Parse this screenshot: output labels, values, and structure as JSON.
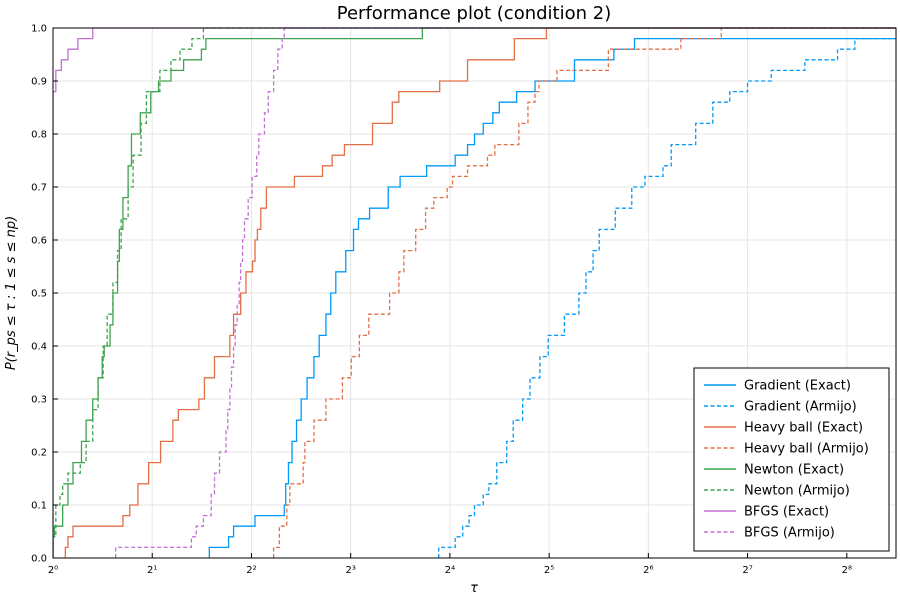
{
  "chart_data": {
    "type": "line",
    "title": "Performance plot (condition 2)",
    "xlabel": "τ",
    "ylabel": "P(r_ps ≤ τ : 1 ≤ s ≤ np)",
    "xscale": "log2",
    "xlim": [
      1,
      361
    ],
    "ylim": [
      0,
      1
    ],
    "xticks": [
      {
        "value": 1,
        "label": "2⁰"
      },
      {
        "value": 2,
        "label": "2¹"
      },
      {
        "value": 4,
        "label": "2²"
      },
      {
        "value": 8,
        "label": "2³"
      },
      {
        "value": 16,
        "label": "2⁴"
      },
      {
        "value": 32,
        "label": "2⁵"
      },
      {
        "value": 64,
        "label": "2⁶"
      },
      {
        "value": 128,
        "label": "2⁷"
      },
      {
        "value": 256,
        "label": "2⁸"
      }
    ],
    "yticks": [
      "0.0",
      "0.1",
      "0.2",
      "0.3",
      "0.4",
      "0.5",
      "0.6",
      "0.7",
      "0.8",
      "0.9",
      "1.0"
    ],
    "grid": true,
    "legend_position": "bottom-right",
    "series": [
      {
        "name": "Gradient (Exact)",
        "color": "#009af9",
        "dash": "solid",
        "points": [
          [
            2.98,
            0
          ],
          [
            2.98,
            0.02
          ],
          [
            3.41,
            0.02
          ],
          [
            3.41,
            0.04
          ],
          [
            3.53,
            0.04
          ],
          [
            3.53,
            0.06
          ],
          [
            4.1,
            0.06
          ],
          [
            4.1,
            0.08
          ],
          [
            5.03,
            0.08
          ],
          [
            5.03,
            0.1
          ],
          [
            5.08,
            0.14
          ],
          [
            5.18,
            0.18
          ],
          [
            5.31,
            0.22
          ],
          [
            5.48,
            0.26
          ],
          [
            5.66,
            0.3
          ],
          [
            5.9,
            0.34
          ],
          [
            6.19,
            0.38
          ],
          [
            6.42,
            0.42
          ],
          [
            6.73,
            0.46
          ],
          [
            6.96,
            0.5
          ],
          [
            7.21,
            0.54
          ],
          [
            7.73,
            0.58
          ],
          [
            8.16,
            0.62
          ],
          [
            8.45,
            0.64
          ],
          [
            9.13,
            0.66
          ],
          [
            10.4,
            0.7
          ],
          [
            11.3,
            0.72
          ],
          [
            13.6,
            0.72
          ],
          [
            13.6,
            0.74
          ],
          [
            16.6,
            0.74
          ],
          [
            16.6,
            0.76
          ],
          [
            18.1,
            0.78
          ],
          [
            19.0,
            0.8
          ],
          [
            20.2,
            0.82
          ],
          [
            21.6,
            0.84
          ],
          [
            22.6,
            0.86
          ],
          [
            25.5,
            0.88
          ],
          [
            29.0,
            0.88
          ],
          [
            29.0,
            0.9
          ],
          [
            38.2,
            0.9
          ],
          [
            38.2,
            0.94
          ],
          [
            42.7,
            0.94
          ],
          [
            50.3,
            0.94
          ],
          [
            50.3,
            0.96
          ],
          [
            58.1,
            0.96
          ],
          [
            58.1,
            0.98
          ],
          [
            361,
            0.98
          ]
        ]
      },
      {
        "name": "Gradient (Armijo)",
        "color": "#009af9",
        "dash": "dashed",
        "points": [
          [
            14.8,
            0
          ],
          [
            14.8,
            0.02
          ],
          [
            16.6,
            0.02
          ],
          [
            16.6,
            0.04
          ],
          [
            17.5,
            0.06
          ],
          [
            18.3,
            0.08
          ],
          [
            19.0,
            0.1
          ],
          [
            20.2,
            0.12
          ],
          [
            21.0,
            0.14
          ],
          [
            22.2,
            0.18
          ],
          [
            23.8,
            0.22
          ],
          [
            24.9,
            0.26
          ],
          [
            26.6,
            0.3
          ],
          [
            28.0,
            0.34
          ],
          [
            30.0,
            0.38
          ],
          [
            31.8,
            0.42
          ],
          [
            35.6,
            0.46
          ],
          [
            39.4,
            0.5
          ],
          [
            41.4,
            0.54
          ],
          [
            43.5,
            0.58
          ],
          [
            45.4,
            0.62
          ],
          [
            50.8,
            0.66
          ],
          [
            57.0,
            0.7
          ],
          [
            62.5,
            0.72
          ],
          [
            70.9,
            0.74
          ],
          [
            75.1,
            0.78
          ],
          [
            89.1,
            0.78
          ],
          [
            89.1,
            0.82
          ],
          [
            100.4,
            0.86
          ],
          [
            113.0,
            0.88
          ],
          [
            128.0,
            0.9
          ],
          [
            151.0,
            0.92
          ],
          [
            191.0,
            0.94
          ],
          [
            240.0,
            0.96
          ],
          [
            270.8,
            0.98
          ],
          [
            361,
            0.98
          ]
        ]
      },
      {
        "name": "Heavy ball (Exact)",
        "color": "#e26f46",
        "dash": "solid",
        "points": [
          [
            1.09,
            0
          ],
          [
            1.09,
            0.02
          ],
          [
            1.11,
            0.04
          ],
          [
            1.15,
            0.06
          ],
          [
            1.63,
            0.06
          ],
          [
            1.63,
            0.08
          ],
          [
            1.71,
            0.1
          ],
          [
            1.81,
            0.14
          ],
          [
            1.95,
            0.18
          ],
          [
            2.12,
            0.22
          ],
          [
            2.31,
            0.26
          ],
          [
            2.4,
            0.28
          ],
          [
            2.77,
            0.3
          ],
          [
            2.88,
            0.34
          ],
          [
            3.09,
            0.38
          ],
          [
            3.44,
            0.42
          ],
          [
            3.53,
            0.46
          ],
          [
            3.71,
            0.5
          ],
          [
            3.85,
            0.54
          ],
          [
            4.03,
            0.56
          ],
          [
            4.1,
            0.6
          ],
          [
            4.17,
            0.62
          ],
          [
            4.27,
            0.66
          ],
          [
            4.44,
            0.7
          ],
          [
            5.4,
            0.7
          ],
          [
            5.4,
            0.72
          ],
          [
            6.57,
            0.72
          ],
          [
            6.57,
            0.74
          ],
          [
            7.03,
            0.76
          ],
          [
            7.66,
            0.78
          ],
          [
            9.32,
            0.78
          ],
          [
            9.32,
            0.82
          ],
          [
            10.7,
            0.86
          ],
          [
            11.2,
            0.88
          ],
          [
            14.9,
            0.88
          ],
          [
            14.9,
            0.9
          ],
          [
            18.1,
            0.9
          ],
          [
            18.1,
            0.94
          ],
          [
            20.4,
            0.94
          ],
          [
            25.1,
            0.94
          ],
          [
            25.1,
            0.98
          ],
          [
            31.4,
            0.98
          ],
          [
            31.4,
            1.0
          ],
          [
            361,
            1.0
          ]
        ]
      },
      {
        "name": "Heavy ball (Armijo)",
        "color": "#e26f46",
        "dash": "dashed",
        "points": [
          [
            4.67,
            0
          ],
          [
            4.67,
            0.02
          ],
          [
            4.86,
            0.06
          ],
          [
            5.12,
            0.1
          ],
          [
            5.23,
            0.14
          ],
          [
            5.74,
            0.18
          ],
          [
            5.81,
            0.22
          ],
          [
            6.19,
            0.26
          ],
          [
            6.73,
            0.3
          ],
          [
            7.55,
            0.34
          ],
          [
            8.03,
            0.38
          ],
          [
            8.5,
            0.42
          ],
          [
            9.08,
            0.46
          ],
          [
            10.5,
            0.5
          ],
          [
            11.2,
            0.54
          ],
          [
            11.6,
            0.58
          ],
          [
            12.6,
            0.62
          ],
          [
            13.5,
            0.66
          ],
          [
            14.3,
            0.68
          ],
          [
            15.7,
            0.7
          ],
          [
            16.3,
            0.72
          ],
          [
            18.1,
            0.74
          ],
          [
            20.8,
            0.76
          ],
          [
            21.9,
            0.78
          ],
          [
            25.9,
            0.78
          ],
          [
            25.9,
            0.82
          ],
          [
            27.6,
            0.86
          ],
          [
            29.0,
            0.88
          ],
          [
            29.8,
            0.9
          ],
          [
            33.8,
            0.9
          ],
          [
            33.8,
            0.92
          ],
          [
            42.7,
            0.92
          ],
          [
            48.4,
            0.92
          ],
          [
            48.4,
            0.96
          ],
          [
            80.3,
            0.96
          ],
          [
            80.3,
            0.98
          ],
          [
            106.5,
            0.98
          ],
          [
            106.5,
            1.0
          ],
          [
            361,
            1.0
          ]
        ]
      },
      {
        "name": "Newton (Exact)",
        "color": "#3ea44e",
        "dash": "solid",
        "points": [
          [
            1.0,
            0
          ],
          [
            1.0,
            0.04
          ],
          [
            1.01,
            0.06
          ],
          [
            1.07,
            0.06
          ],
          [
            1.07,
            0.1
          ],
          [
            1.11,
            0.14
          ],
          [
            1.15,
            0.18
          ],
          [
            1.22,
            0.22
          ],
          [
            1.26,
            0.26
          ],
          [
            1.32,
            0.3
          ],
          [
            1.37,
            0.34
          ],
          [
            1.41,
            0.38
          ],
          [
            1.43,
            0.4
          ],
          [
            1.49,
            0.44
          ],
          [
            1.52,
            0.5
          ],
          [
            1.57,
            0.56
          ],
          [
            1.59,
            0.62
          ],
          [
            1.63,
            0.68
          ],
          [
            1.69,
            0.74
          ],
          [
            1.73,
            0.8
          ],
          [
            1.84,
            0.84
          ],
          [
            1.98,
            0.88
          ],
          [
            2.09,
            0.9
          ],
          [
            2.28,
            0.92
          ],
          [
            2.49,
            0.94
          ],
          [
            2.82,
            0.96
          ],
          [
            2.91,
            0.98
          ],
          [
            13.2,
            0.98
          ],
          [
            13.2,
            1.0
          ],
          [
            361,
            1.0
          ]
        ]
      },
      {
        "name": "Newton (Armijo)",
        "color": "#3ea44e",
        "dash": "dashed",
        "points": [
          [
            1.0,
            0
          ],
          [
            1.0,
            0.04
          ],
          [
            1.02,
            0.1
          ],
          [
            1.05,
            0.12
          ],
          [
            1.07,
            0.14
          ],
          [
            1.11,
            0.16
          ],
          [
            1.21,
            0.18
          ],
          [
            1.26,
            0.22
          ],
          [
            1.32,
            0.28
          ],
          [
            1.37,
            0.34
          ],
          [
            1.42,
            0.4
          ],
          [
            1.46,
            0.46
          ],
          [
            1.52,
            0.52
          ],
          [
            1.57,
            0.58
          ],
          [
            1.61,
            0.64
          ],
          [
            1.69,
            0.7
          ],
          [
            1.75,
            0.76
          ],
          [
            1.85,
            0.82
          ],
          [
            1.92,
            0.88
          ],
          [
            2.11,
            0.92
          ],
          [
            2.28,
            0.94
          ],
          [
            2.43,
            0.96
          ],
          [
            2.64,
            0.98
          ],
          [
            2.86,
            1.0
          ],
          [
            361,
            1.0
          ]
        ]
      },
      {
        "name": "BFGS (Exact)",
        "color": "#c271d2",
        "dash": "solid",
        "points": [
          [
            1.0,
            0
          ],
          [
            1.0,
            0.88
          ],
          [
            1.02,
            0.92
          ],
          [
            1.06,
            0.94
          ],
          [
            1.11,
            0.96
          ],
          [
            1.19,
            0.98
          ],
          [
            1.32,
            1.0
          ],
          [
            361,
            1.0
          ]
        ]
      },
      {
        "name": "BFGS (Armijo)",
        "color": "#c271d2",
        "dash": "dashed",
        "points": [
          [
            1.55,
            0
          ],
          [
            1.55,
            0.02
          ],
          [
            2.63,
            0.02
          ],
          [
            2.63,
            0.04
          ],
          [
            2.72,
            0.06
          ],
          [
            2.86,
            0.08
          ],
          [
            3.02,
            0.12
          ],
          [
            3.09,
            0.16
          ],
          [
            3.2,
            0.2
          ],
          [
            3.35,
            0.24
          ],
          [
            3.39,
            0.28
          ],
          [
            3.44,
            0.32
          ],
          [
            3.48,
            0.36
          ],
          [
            3.53,
            0.4
          ],
          [
            3.57,
            0.44
          ],
          [
            3.62,
            0.48
          ],
          [
            3.67,
            0.52
          ],
          [
            3.71,
            0.56
          ],
          [
            3.76,
            0.6
          ],
          [
            3.81,
            0.64
          ],
          [
            3.91,
            0.68
          ],
          [
            4.02,
            0.72
          ],
          [
            4.15,
            0.76
          ],
          [
            4.21,
            0.8
          ],
          [
            4.38,
            0.84
          ],
          [
            4.5,
            0.88
          ],
          [
            4.67,
            0.92
          ],
          [
            4.81,
            0.96
          ],
          [
            4.96,
            0.98
          ],
          [
            5.03,
            1.0
          ],
          [
            361,
            1.0
          ]
        ]
      }
    ]
  }
}
